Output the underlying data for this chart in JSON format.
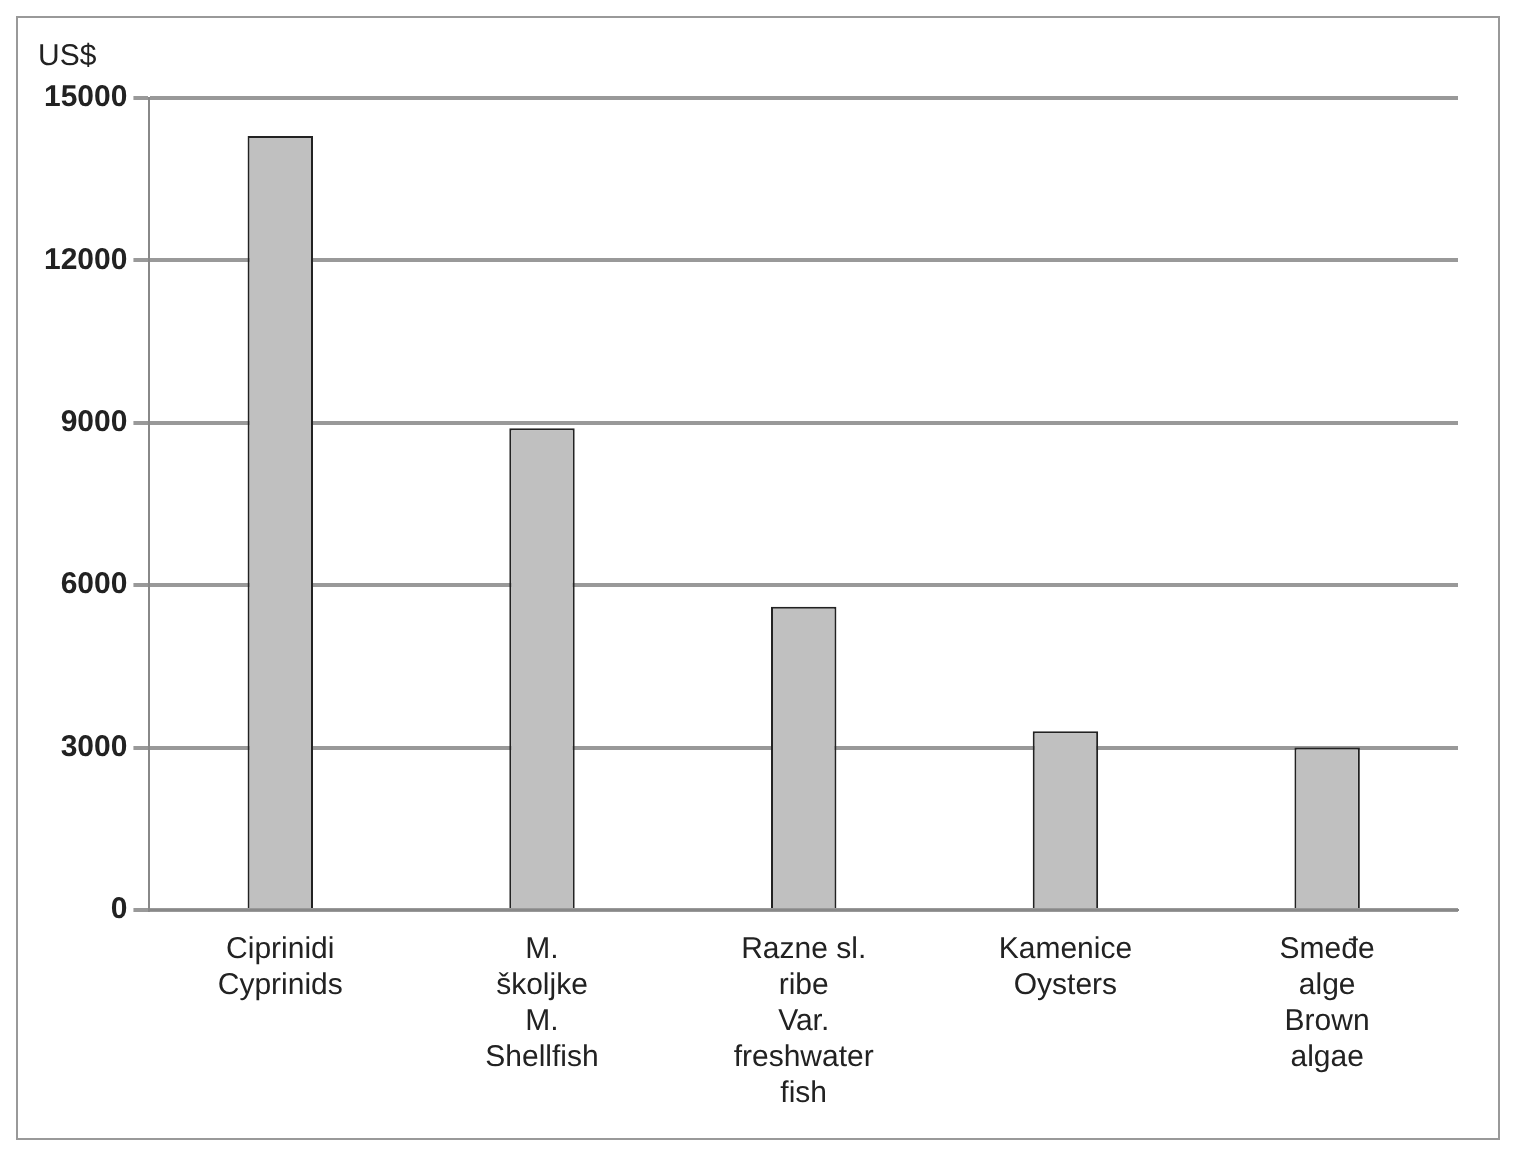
{
  "chart_data": {
    "type": "bar",
    "ylabel": "US$",
    "categories": [
      "Ciprinidi\nCyprinids",
      "M.\nškoljke\nM.\nShellfish",
      "Razne sl.\nribe\nVar.\nfreshwater\nfish",
      "Kamenice\nOysters",
      "Smeđe\nalge\nBrown\nalgae"
    ],
    "values": [
      14300,
      8900,
      5600,
      3300,
      3000
    ],
    "color": "#c0c0c0",
    "ylim": [
      0,
      15000
    ],
    "yticks": [
      0,
      3000,
      6000,
      9000,
      12000,
      15000
    ],
    "grid": "y"
  }
}
